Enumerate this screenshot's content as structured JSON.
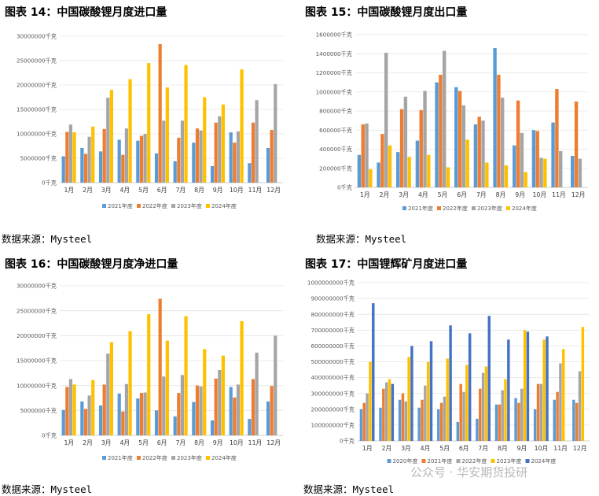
{
  "months": [
    "1月",
    "2月",
    "3月",
    "4月",
    "5月",
    "6月",
    "7月",
    "8月",
    "9月",
    "10月",
    "11月",
    "12月"
  ],
  "colors": [
    "#5b9bd5",
    "#ed7d31",
    "#a5a5a5",
    "#ffc000",
    "#4472c4"
  ],
  "source_label": "数据来源：Mysteel",
  "watermark": "公众号 · 华安期货投研",
  "chart_data": [
    {
      "id": "c14",
      "type": "bar",
      "title": "图表 14：中国碳酸锂月度进口量",
      "unit": "千克",
      "ylim": [
        0,
        30000000
      ],
      "ystep": 5000000,
      "series": [
        {
          "name": "2021年度",
          "values": [
            5400000,
            7100000,
            6400000,
            8800000,
            8600000,
            6000000,
            4400000,
            8200000,
            3400000,
            10300000,
            4000000,
            7100000
          ]
        },
        {
          "name": "2022年度",
          "values": [
            10400000,
            5900000,
            11000000,
            5700000,
            9600000,
            28400000,
            9200000,
            11100000,
            12300000,
            8200000,
            12300000,
            10800000
          ]
        },
        {
          "name": "2023年度",
          "values": [
            11900000,
            9400000,
            17400000,
            11100000,
            10000000,
            12700000,
            12700000,
            10700000,
            13600000,
            10500000,
            16900000,
            20200000
          ]
        },
        {
          "name": "2024年度",
          "values": [
            10300000,
            11500000,
            19000000,
            21200000,
            24500000,
            19500000,
            24100000,
            17500000,
            16000000,
            23200000,
            null,
            null
          ]
        }
      ]
    },
    {
      "id": "c15",
      "type": "bar",
      "title": "图表 15：中国碳酸锂月度出口量",
      "unit": "千克",
      "ylim": [
        0,
        1600000
      ],
      "ystep": 200000,
      "series": [
        {
          "name": "2021年度",
          "values": [
            340000,
            260000,
            370000,
            490000,
            1100000,
            1050000,
            660000,
            1460000,
            440000,
            600000,
            680000,
            330000
          ]
        },
        {
          "name": "2022年度",
          "values": [
            660000,
            560000,
            820000,
            810000,
            1180000,
            1010000,
            740000,
            1180000,
            910000,
            590000,
            1030000,
            900000
          ]
        },
        {
          "name": "2023年度",
          "values": [
            670000,
            1410000,
            950000,
            1010000,
            1430000,
            860000,
            700000,
            940000,
            570000,
            310000,
            380000,
            300000
          ]
        },
        {
          "name": "2024年度",
          "values": [
            190000,
            440000,
            320000,
            340000,
            210000,
            500000,
            260000,
            230000,
            160000,
            300000,
            null,
            null
          ]
        }
      ]
    },
    {
      "id": "c16",
      "type": "bar",
      "title": "图表 16：中国碳酸锂月度净进口量",
      "unit": "千克",
      "ylim": [
        0,
        30000000
      ],
      "ystep": 5000000,
      "series": [
        {
          "name": "2021年度",
          "values": [
            5100000,
            6800000,
            6000000,
            8400000,
            7400000,
            5000000,
            3800000,
            6700000,
            3000000,
            9700000,
            3300000,
            6800000
          ]
        },
        {
          "name": "2022年度",
          "values": [
            9700000,
            5300000,
            10200000,
            4800000,
            8500000,
            27400000,
            8500000,
            10000000,
            11400000,
            7600000,
            11300000,
            9900000
          ]
        },
        {
          "name": "2023年度",
          "values": [
            11300000,
            8000000,
            16400000,
            10300000,
            8600000,
            11800000,
            12100000,
            9800000,
            13100000,
            10200000,
            16600000,
            20000000
          ]
        },
        {
          "name": "2024年度",
          "values": [
            10200000,
            11100000,
            18700000,
            20900000,
            24300000,
            19000000,
            23900000,
            17300000,
            16000000,
            22900000,
            null,
            null
          ]
        }
      ]
    },
    {
      "id": "c17",
      "type": "bar",
      "title": "图表 17：中国锂辉矿月度进口量",
      "unit": "千克",
      "ylim": [
        0,
        1000000000
      ],
      "ystep": 100000000,
      "series": [
        {
          "name": "2020年度",
          "values": [
            200000000,
            210000000,
            260000000,
            210000000,
            200000000,
            120000000,
            140000000,
            230000000,
            270000000,
            200000000,
            260000000,
            260000000
          ]
        },
        {
          "name": "2021年度",
          "values": [
            240000000,
            330000000,
            300000000,
            260000000,
            240000000,
            360000000,
            330000000,
            230000000,
            240000000,
            360000000,
            310000000,
            240000000
          ]
        },
        {
          "name": "2022年度",
          "values": [
            300000000,
            370000000,
            250000000,
            350000000,
            280000000,
            310000000,
            430000000,
            320000000,
            330000000,
            360000000,
            490000000,
            440000000
          ]
        },
        {
          "name": "2023年度",
          "values": [
            500000000,
            390000000,
            530000000,
            500000000,
            520000000,
            480000000,
            470000000,
            390000000,
            700000000,
            640000000,
            580000000,
            720000000
          ]
        },
        {
          "name": "2024年度",
          "values": [
            870000000,
            360000000,
            600000000,
            630000000,
            730000000,
            680000000,
            790000000,
            640000000,
            690000000,
            660000000,
            null,
            null
          ]
        }
      ]
    }
  ]
}
